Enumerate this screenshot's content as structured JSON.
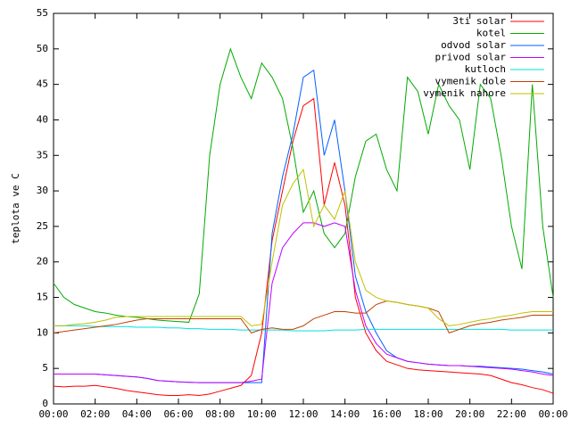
{
  "chart_data": {
    "type": "line",
    "y_label": "teplota ve C",
    "x": [
      0,
      0.5,
      1,
      1.5,
      2,
      2.5,
      3,
      3.5,
      4,
      4.5,
      5,
      5.5,
      6,
      6.5,
      7,
      7.5,
      8,
      8.5,
      9,
      9.5,
      10,
      10.5,
      11,
      11.5,
      12,
      12.5,
      13,
      13.5,
      14,
      14.5,
      15,
      15.5,
      16,
      16.5,
      17,
      17.5,
      18,
      18.5,
      19,
      19.5,
      20,
      20.5,
      21,
      21.5,
      22,
      22.5,
      23,
      23.5,
      24
    ],
    "xlim": [
      0,
      24
    ],
    "xticks": [
      {
        "value": 0,
        "label": "00:00"
      },
      {
        "value": 2,
        "label": "02:00"
      },
      {
        "value": 4,
        "label": "04:00"
      },
      {
        "value": 6,
        "label": "06:00"
      },
      {
        "value": 8,
        "label": "08:00"
      },
      {
        "value": 10,
        "label": "10:00"
      },
      {
        "value": 12,
        "label": "12:00"
      },
      {
        "value": 14,
        "label": "14:00"
      },
      {
        "value": 16,
        "label": "16:00"
      },
      {
        "value": 18,
        "label": "18:00"
      },
      {
        "value": 20,
        "label": "20:00"
      },
      {
        "value": 22,
        "label": "22:00"
      },
      {
        "value": 24,
        "label": "00:00"
      }
    ],
    "ylim": [
      0,
      55
    ],
    "yticks": [
      0,
      5,
      10,
      15,
      20,
      25,
      30,
      35,
      40,
      45,
      50,
      55
    ],
    "legend": "top-right",
    "series": [
      {
        "name": "3ti solar",
        "color": "#ff0000",
        "values": [
          2.5,
          2.4,
          2.5,
          2.5,
          2.6,
          2.4,
          2.2,
          1.9,
          1.7,
          1.5,
          1.3,
          1.2,
          1.2,
          1.3,
          1.2,
          1.4,
          1.8,
          2.2,
          2.6,
          4,
          10,
          23,
          30,
          37,
          42,
          43,
          28,
          34,
          28,
          15,
          10,
          7.5,
          6,
          5.5,
          5,
          4.8,
          4.7,
          4.6,
          4.5,
          4.4,
          4.3,
          4.2,
          4,
          3.5,
          3,
          2.7,
          2.3,
          2,
          1.5
        ]
      },
      {
        "name": "kotel",
        "color": "#00aa00",
        "values": [
          17,
          15,
          14,
          13.5,
          13,
          12.8,
          12.5,
          12.3,
          12.2,
          12,
          11.8,
          11.7,
          11.6,
          11.5,
          15.5,
          35,
          45,
          50,
          46,
          43,
          48,
          46,
          43,
          36,
          27,
          30,
          24,
          22,
          24,
          32,
          37,
          38,
          33,
          30,
          46,
          44,
          38,
          45,
          42,
          40,
          33,
          45,
          43,
          35,
          25,
          19,
          45,
          25,
          15
        ]
      },
      {
        "name": "odvod solar",
        "color": "#0060ff",
        "values": [
          4.2,
          4.2,
          4.2,
          4.2,
          4.2,
          4.1,
          4,
          3.9,
          3.8,
          3.6,
          3.3,
          3.2,
          3.1,
          3.05,
          3,
          3,
          3,
          3,
          3,
          3,
          3,
          24,
          32,
          38,
          46,
          47,
          35,
          40,
          30,
          18,
          13,
          10,
          7.5,
          6.5,
          6,
          5.8,
          5.6,
          5.5,
          5.4,
          5.4,
          5.3,
          5.3,
          5.2,
          5.1,
          5,
          4.9,
          4.7,
          4.5,
          4.2
        ]
      },
      {
        "name": "privod solar",
        "color": "#c000ff",
        "values": [
          4.2,
          4.2,
          4.2,
          4.2,
          4.2,
          4.1,
          4,
          3.9,
          3.8,
          3.6,
          3.3,
          3.2,
          3.1,
          3.05,
          3,
          3,
          3,
          3,
          3,
          3.2,
          3.5,
          17,
          22,
          24,
          25.5,
          25.5,
          25,
          25.5,
          25,
          16,
          11,
          8.5,
          7,
          6.5,
          6,
          5.8,
          5.6,
          5.5,
          5.4,
          5.4,
          5.3,
          5.2,
          5.1,
          5,
          4.9,
          4.7,
          4.5,
          4.2,
          4
        ]
      },
      {
        "name": "kutloch",
        "color": "#00e0e0",
        "values": [
          11,
          11,
          11,
          11,
          10.9,
          10.9,
          10.9,
          10.9,
          10.8,
          10.8,
          10.8,
          10.7,
          10.7,
          10.6,
          10.6,
          10.5,
          10.5,
          10.5,
          10.4,
          10.4,
          10.4,
          10.4,
          10.4,
          10.3,
          10.3,
          10.3,
          10.3,
          10.4,
          10.4,
          10.4,
          10.5,
          10.5,
          10.5,
          10.5,
          10.5,
          10.5,
          10.5,
          10.5,
          10.5,
          10.5,
          10.5,
          10.5,
          10.5,
          10.5,
          10.4,
          10.4,
          10.4,
          10.4,
          10.4
        ]
      },
      {
        "name": "vymenik dole",
        "color": "#c04000",
        "values": [
          10,
          10.2,
          10.4,
          10.6,
          10.8,
          11,
          11.2,
          11.5,
          11.8,
          12,
          12,
          12,
          12,
          12,
          12,
          12,
          12,
          12,
          12,
          10,
          10.5,
          10.7,
          10.5,
          10.5,
          11,
          12,
          12.5,
          13,
          13,
          12.8,
          12.8,
          14,
          14.5,
          14.3,
          14,
          13.8,
          13.5,
          13,
          10,
          10.5,
          11,
          11.3,
          11.5,
          11.8,
          12,
          12.2,
          12.5,
          12.5,
          12.5
        ]
      },
      {
        "name": "vymenik nahore",
        "color": "#c0c000",
        "values": [
          11,
          11,
          11.2,
          11.3,
          11.5,
          11.8,
          12.2,
          12.3,
          12.3,
          12.3,
          12.3,
          12.3,
          12.3,
          12.3,
          12.3,
          12.3,
          12.3,
          12.3,
          12.3,
          11,
          11.2,
          20,
          28,
          31,
          33,
          25,
          28,
          26,
          30,
          20,
          16,
          15,
          14.5,
          14.3,
          14,
          13.8,
          13.5,
          12,
          11,
          11.2,
          11.5,
          11.8,
          12,
          12.3,
          12.5,
          12.8,
          13,
          13,
          13
        ]
      }
    ]
  }
}
